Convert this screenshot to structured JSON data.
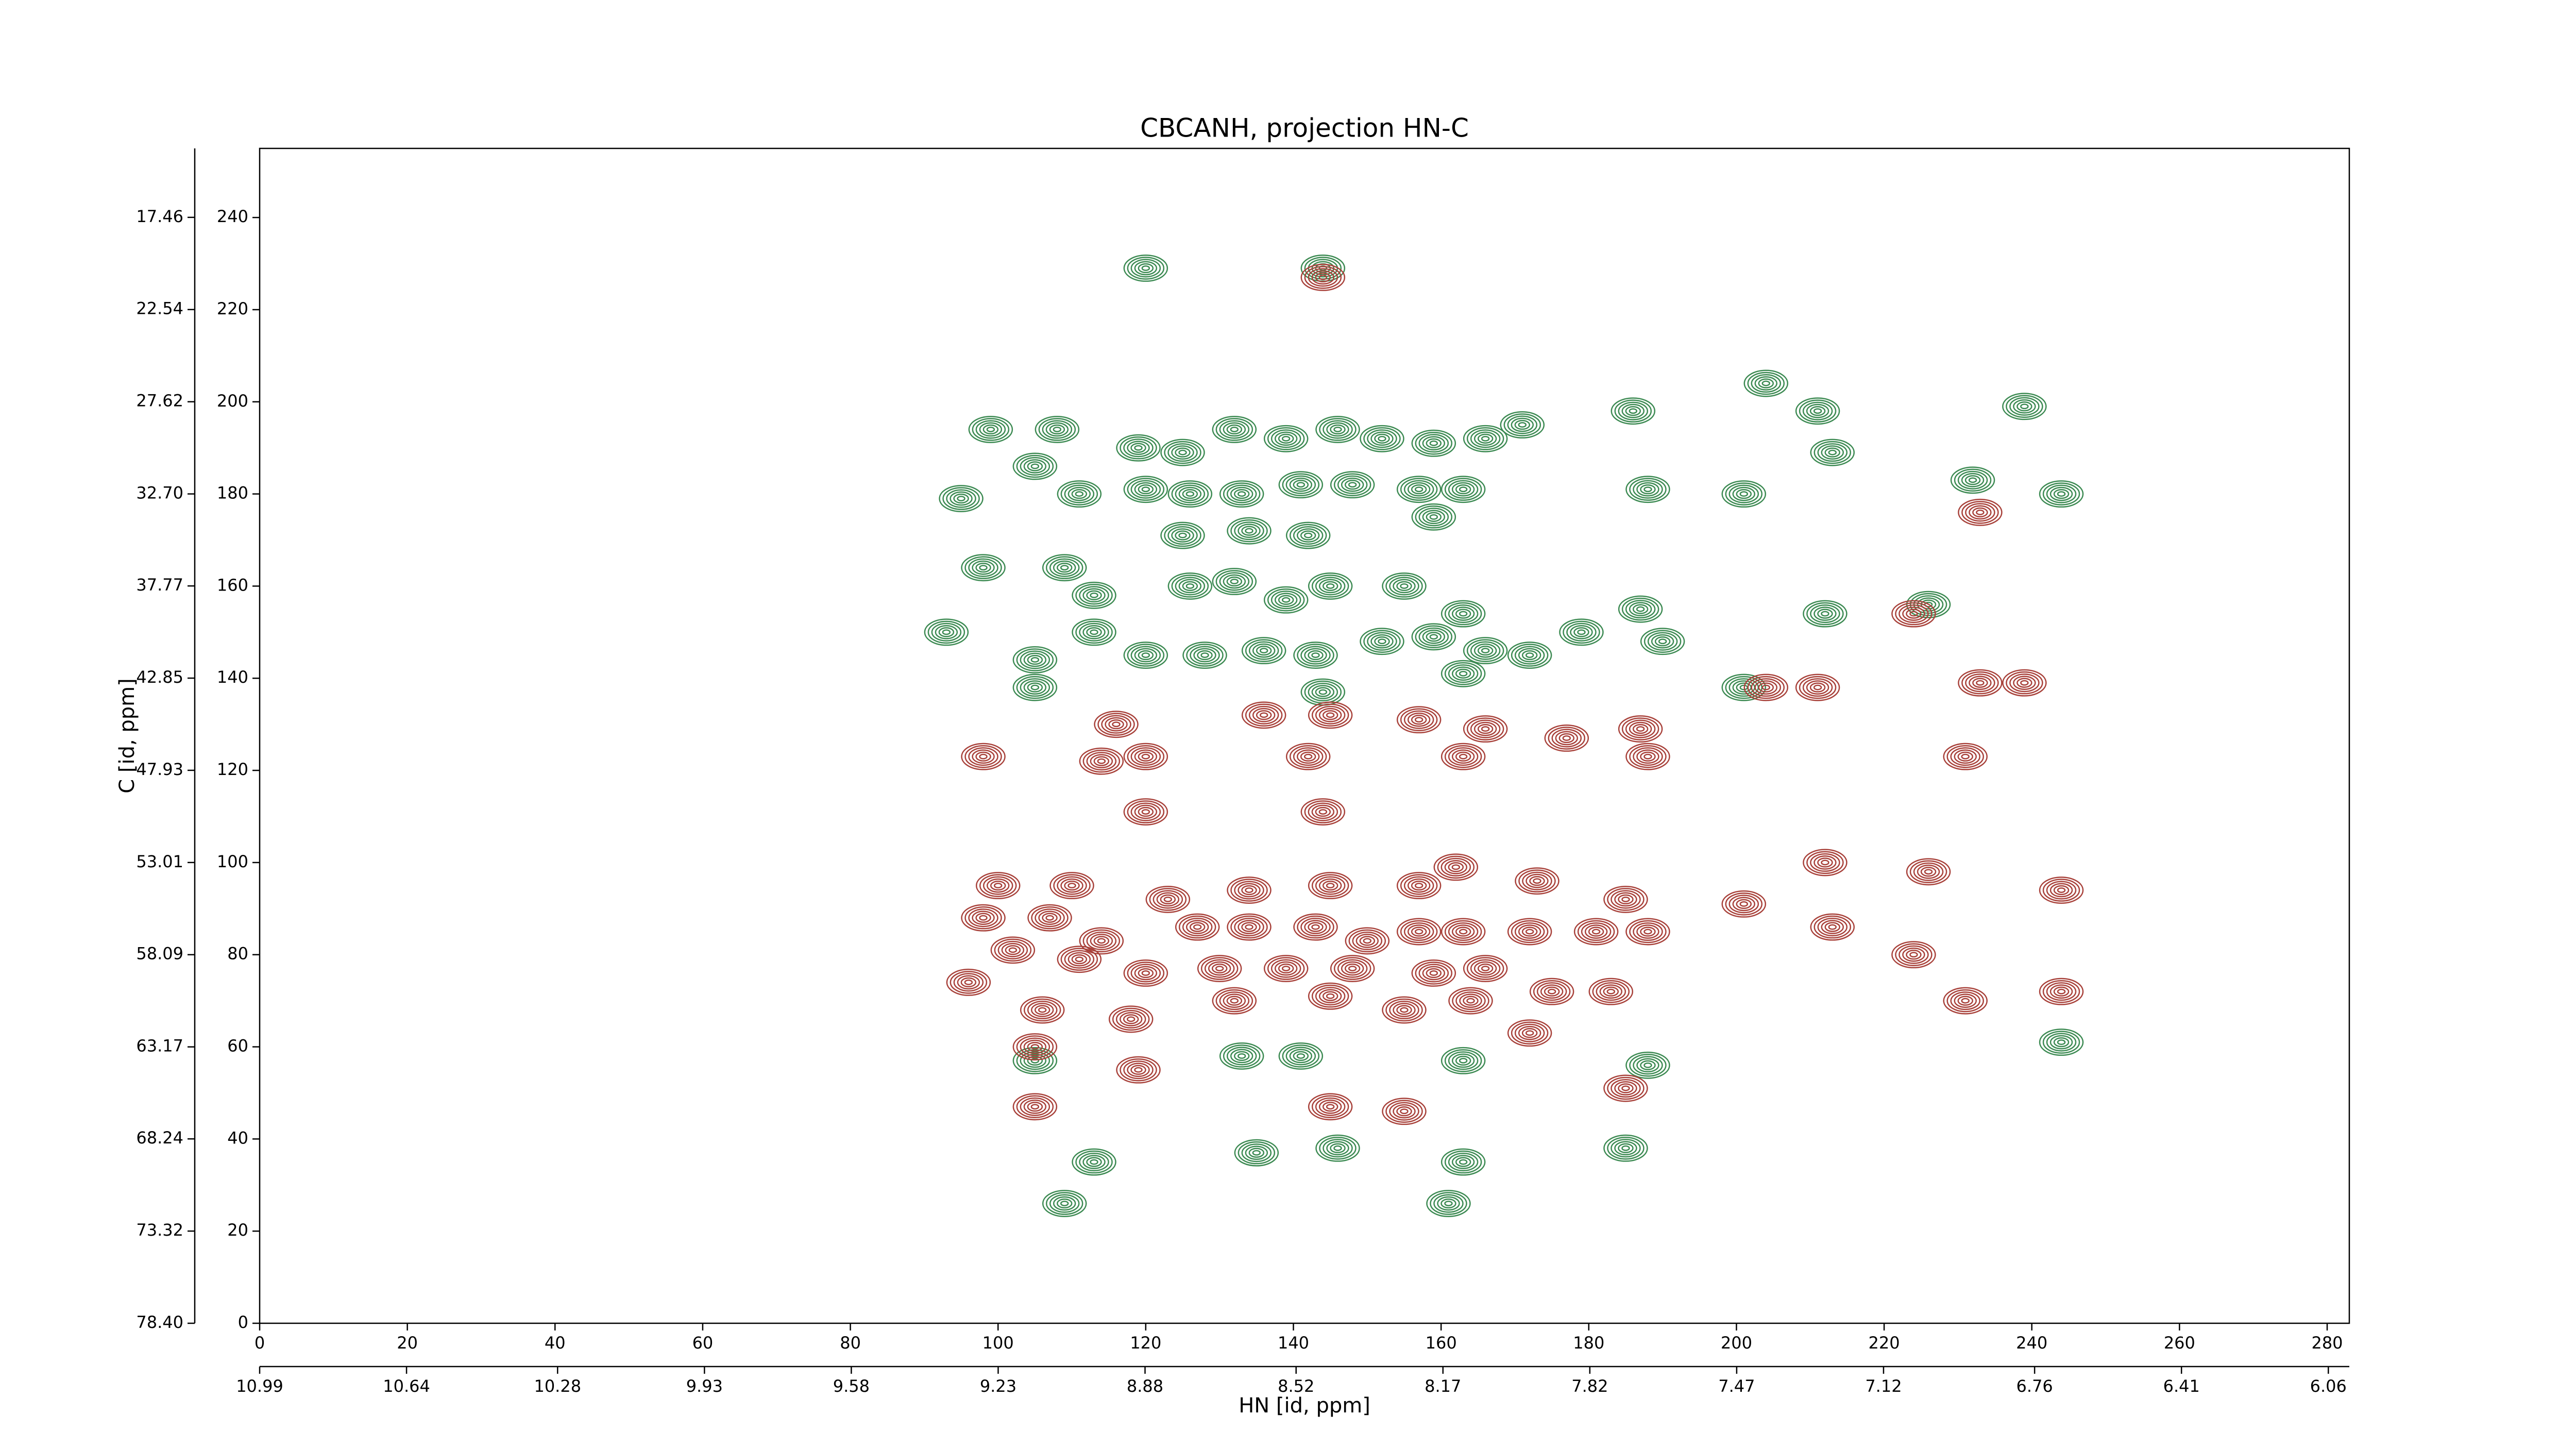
{
  "chart_data": {
    "type": "contour",
    "title": "CBCANH, projection HN-C",
    "xlabel": "HN [id, ppm]",
    "ylabel": "C [id, ppm]",
    "xlim": [
      0,
      283
    ],
    "xticks": [
      0,
      20,
      40,
      60,
      80,
      100,
      120,
      140,
      160,
      180,
      200,
      220,
      240,
      260,
      280
    ],
    "ylim": [
      0,
      255
    ],
    "yticks": [
      0,
      20,
      40,
      60,
      80,
      100,
      120,
      140,
      160,
      180,
      200,
      220,
      240
    ],
    "x2lim": [
      10.99,
      6.01
    ],
    "x2ticks": [
      10.99,
      10.64,
      10.28,
      9.93,
      9.58,
      9.23,
      8.88,
      8.52,
      8.17,
      7.82,
      7.47,
      7.12,
      6.76,
      6.41,
      6.06
    ],
    "y2lim": [
      78.4,
      13.66
    ],
    "y2ticks": [
      17.46,
      22.54,
      27.62,
      {
        "value": 32.7,
        "label": "32.70"
      },
      37.77,
      42.85,
      47.93,
      53.01,
      58.09,
      63.17,
      68.24,
      73.32,
      {
        "value": 78.4,
        "label": "78.40"
      }
    ],
    "series": [
      {
        "color": "#3c8a52",
        "x": [
          120,
          144,
          204,
          211,
          239,
          99,
          108,
          119,
          125,
          132,
          139,
          146,
          152,
          159,
          166,
          171,
          186,
          213,
          95,
          105,
          111,
          120,
          126,
          133,
          141,
          148,
          157,
          163,
          188,
          201,
          232,
          244,
          125,
          134,
          142,
          159,
          98,
          109,
          113,
          126,
          132,
          139,
          145,
          155,
          163,
          212,
          226,
          187,
          93,
          105,
          113,
          120,
          128,
          136,
          143,
          152,
          159,
          166,
          172,
          179,
          190,
          105,
          144,
          163,
          201,
          133,
          141,
          163,
          188,
          105,
          135,
          146,
          163,
          185,
          113,
          161,
          109,
          244
        ],
        "y": [
          229,
          229,
          204,
          198,
          199,
          194,
          194,
          190,
          189,
          194,
          192,
          194,
          192,
          191,
          192,
          195,
          198,
          189,
          179,
          186,
          180,
          181,
          180,
          180,
          182,
          182,
          181,
          181,
          181,
          180,
          183,
          180,
          171,
          172,
          171,
          175,
          164,
          164,
          158,
          160,
          161,
          157,
          160,
          160,
          154,
          154,
          156,
          155,
          150,
          144,
          150,
          145,
          145,
          146,
          145,
          148,
          149,
          146,
          145,
          150,
          148,
          138,
          137,
          141,
          138,
          58,
          58,
          57,
          56,
          57,
          37,
          38,
          35,
          38,
          35,
          26,
          26,
          61
        ]
      },
      {
        "color": "#a8413a",
        "x": [
          144,
          233,
          204,
          211,
          233,
          239,
          224,
          116,
          136,
          145,
          157,
          166,
          177,
          187,
          98,
          114,
          120,
          142,
          163,
          188,
          231,
          120,
          144,
          212,
          226,
          244,
          100,
          110,
          123,
          134,
          145,
          157,
          162,
          173,
          185,
          201,
          213,
          98,
          107,
          114,
          127,
          134,
          143,
          150,
          157,
          163,
          172,
          181,
          188,
          96,
          102,
          111,
          120,
          130,
          139,
          148,
          159,
          166,
          175,
          183,
          224,
          231,
          244,
          106,
          118,
          132,
          145,
          155,
          164,
          172,
          105,
          119,
          145,
          155,
          185,
          105
        ],
        "y": [
          227,
          176,
          138,
          138,
          139,
          139,
          154,
          130,
          132,
          132,
          131,
          129,
          127,
          129,
          123,
          122,
          123,
          123,
          123,
          123,
          123,
          111,
          111,
          100,
          98,
          94,
          95,
          95,
          92,
          94,
          95,
          95,
          99,
          96,
          92,
          91,
          86,
          88,
          88,
          83,
          86,
          86,
          86,
          83,
          85,
          85,
          85,
          85,
          85,
          74,
          81,
          79,
          76,
          77,
          77,
          77,
          76,
          77,
          72,
          72,
          80,
          70,
          72,
          68,
          66,
          70,
          71,
          68,
          70,
          63,
          60,
          55,
          47,
          46,
          51,
          47
        ]
      }
    ]
  }
}
